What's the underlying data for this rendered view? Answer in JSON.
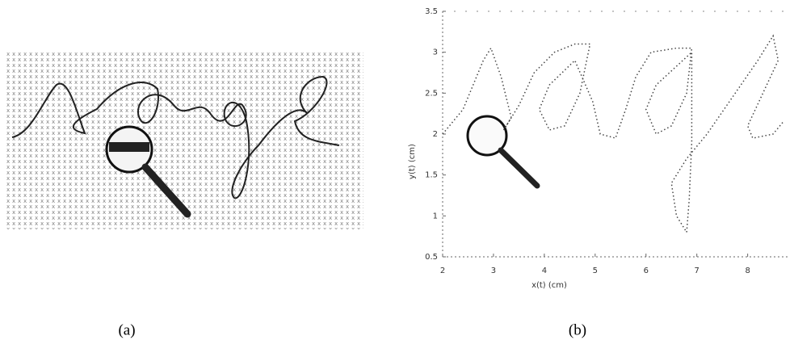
{
  "panel_a": {
    "caption": "(a)"
  },
  "chart_data": {
    "type": "line",
    "caption": "(b)",
    "x_label": "x(t) (cm)",
    "y_label": "y(t) (cm)",
    "x": [
      2.0,
      2.4,
      2.8,
      2.95,
      3.15,
      3.35,
      3.2,
      3.5,
      3.8,
      4.2,
      4.6,
      4.9,
      4.7,
      4.4,
      4.1,
      3.9,
      4.1,
      4.6,
      4.95,
      5.1,
      5.4,
      5.6,
      5.8,
      6.1,
      6.6,
      6.9,
      6.8,
      6.5,
      6.2,
      6.0,
      6.2,
      6.9,
      6.9,
      6.85,
      6.8,
      6.6,
      6.5,
      6.8,
      7.2,
      7.7,
      8.2,
      8.5,
      8.6,
      8.3,
      8.0,
      8.1,
      8.5,
      8.7
    ],
    "series": [
      {
        "color": "#444444",
        "values": [
          2.0,
          2.3,
          2.9,
          3.05,
          2.7,
          2.2,
          2.05,
          2.35,
          2.75,
          3.0,
          3.1,
          3.1,
          2.5,
          2.1,
          2.05,
          2.3,
          2.6,
          2.9,
          2.4,
          2.0,
          1.95,
          2.3,
          2.7,
          3.0,
          3.05,
          3.05,
          2.5,
          2.1,
          2.0,
          2.3,
          2.6,
          3.0,
          1.9,
          1.2,
          0.8,
          1.0,
          1.4,
          1.7,
          2.0,
          2.45,
          2.9,
          3.2,
          2.9,
          2.5,
          2.1,
          1.95,
          2.0,
          2.15
        ]
      }
    ],
    "xlim": [
      2,
      8.8
    ],
    "ylim": [
      0.5,
      3.5
    ],
    "xticks": [
      2,
      3,
      4,
      5,
      6,
      7,
      8
    ],
    "yticks": [
      0.5,
      1,
      1.5,
      2,
      2.5,
      3,
      3.5
    ]
  }
}
